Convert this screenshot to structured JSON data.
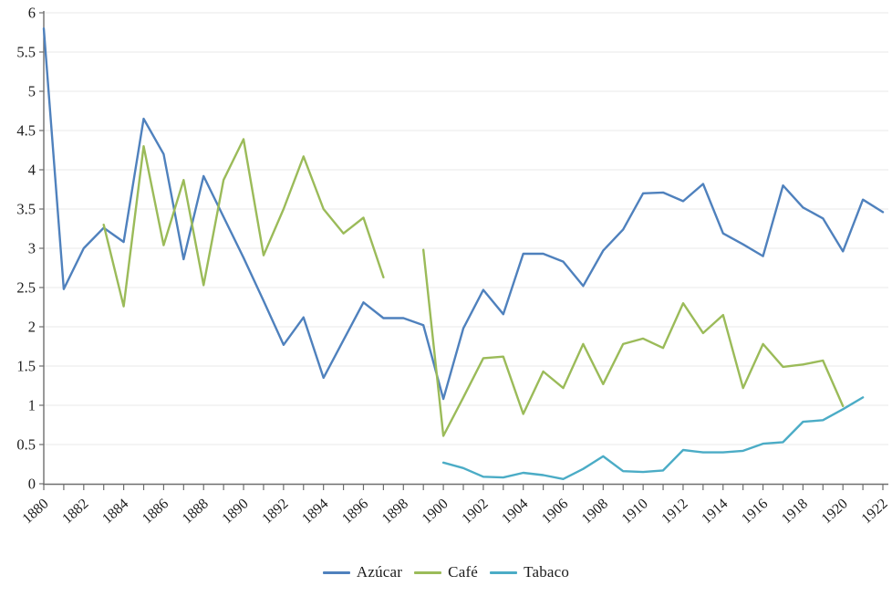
{
  "chart_data": {
    "type": "line",
    "title": "",
    "xlabel": "",
    "ylabel": "",
    "grid": true,
    "legend_position": "bottom",
    "x_range": [
      1880,
      1922
    ],
    "ylim": [
      0,
      6
    ],
    "y_step": 0.5,
    "y_tick_labels": [
      "0",
      "0.5",
      "1",
      "1.5",
      "2",
      "2.5",
      "3",
      "3.5",
      "4",
      "4.5",
      "5",
      "5.5",
      "6"
    ],
    "x_tick_labels": [
      "1880",
      "1882",
      "1884",
      "1886",
      "1888",
      "1890",
      "1892",
      "1894",
      "1896",
      "1898",
      "1900",
      "1902",
      "1904",
      "1906",
      "1908",
      "1910",
      "1912",
      "1914",
      "1916",
      "1918",
      "1920",
      "1922"
    ],
    "colors": {
      "grid": "#e9e9e9",
      "axis": "#6e6e6e",
      "text": "#1c1c1c"
    },
    "series": [
      {
        "name": "Azúcar",
        "id": "azucar",
        "color": "#4F81BD",
        "x_start": 1880,
        "values": [
          5.8,
          2.48,
          3.0,
          3.26,
          3.08,
          4.65,
          4.2,
          2.86,
          3.92,
          3.4,
          2.88,
          2.33,
          1.77,
          2.12,
          1.35,
          1.83,
          2.31,
          2.11,
          2.11,
          2.02,
          1.08,
          1.98,
          2.47,
          2.16,
          2.93,
          2.93,
          2.83,
          2.52,
          2.97,
          3.24,
          3.7,
          3.71,
          3.6,
          3.82,
          3.19,
          3.05,
          2.9,
          3.8,
          3.52,
          3.38,
          2.96,
          3.62,
          3.46
        ]
      },
      {
        "name": "Café",
        "id": "cafe",
        "color": "#9BBB59",
        "x_start": 1883,
        "values": [
          3.3,
          2.26,
          4.3,
          3.04,
          3.87,
          2.53,
          3.87,
          4.39,
          2.91,
          3.5,
          4.17,
          3.5,
          3.19,
          3.39,
          2.63,
          null,
          2.98,
          0.61,
          1.1,
          1.6,
          1.62,
          0.89,
          1.43,
          1.22,
          1.78,
          1.27,
          1.78,
          1.85,
          1.73,
          2.3,
          1.92,
          2.15,
          1.22,
          1.78,
          1.49,
          1.52,
          1.57,
          0.99
        ]
      },
      {
        "name": "Tabaco",
        "id": "tabaco",
        "color": "#4BACC6",
        "x_start": 1900,
        "values": [
          0.27,
          0.2,
          0.09,
          0.08,
          0.14,
          0.11,
          0.06,
          0.19,
          0.35,
          0.16,
          0.15,
          0.17,
          0.43,
          0.4,
          0.4,
          0.42,
          0.51,
          0.53,
          0.79,
          0.81,
          0.95,
          1.1
        ]
      }
    ]
  }
}
